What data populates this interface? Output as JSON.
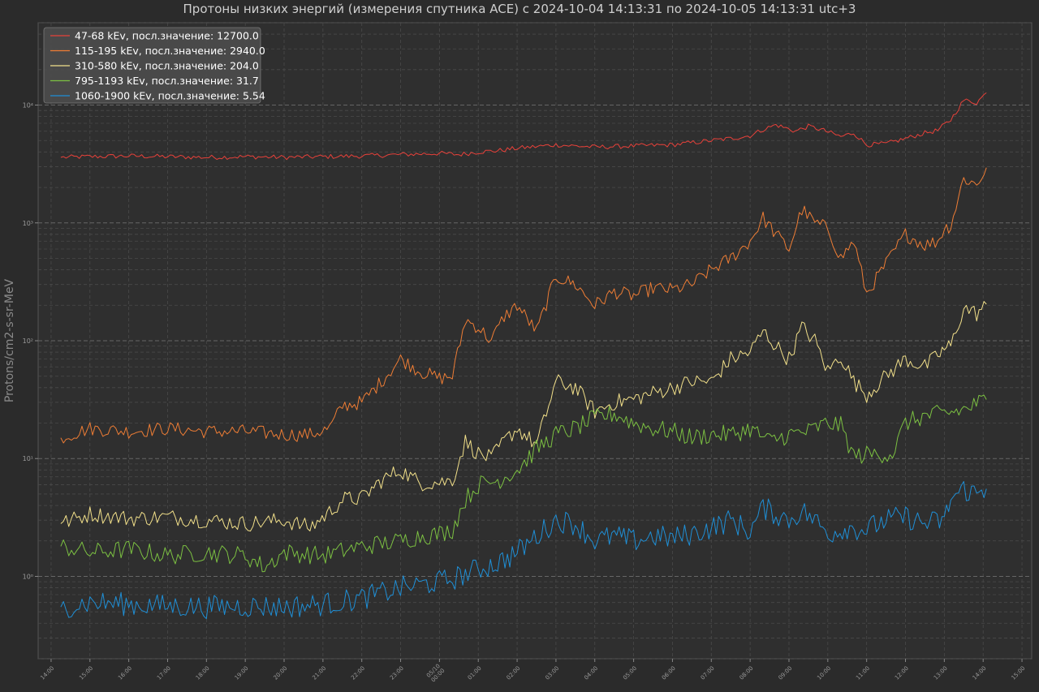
{
  "chart_data": {
    "type": "line",
    "title": "Протоны низких энергий (измерения спутника ACE) с 2024-10-04 14:13:31 по 2024-10-05 14:13:31 utc+3",
    "xlabel": "",
    "ylabel": "Protons/cm2-s-sr-MeV",
    "yscale": "log",
    "ylim": [
      0.2,
      50000
    ],
    "xlim": [
      "2024-10-04 13:40",
      "2024-10-05 15:15"
    ],
    "grid": true,
    "legend_position": "top-left",
    "y_ticks": [
      {
        "value": 1,
        "label": "10⁰"
      },
      {
        "value": 10,
        "label": "10¹"
      },
      {
        "value": 100,
        "label": "10²"
      },
      {
        "value": 1000,
        "label": "10³"
      },
      {
        "value": 10000,
        "label": "10⁴"
      }
    ],
    "x_ticks": [
      {
        "time": "2024-10-04 14:00",
        "label": "14:00"
      },
      {
        "time": "2024-10-04 15:00",
        "label": "15:00"
      },
      {
        "time": "2024-10-04 16:00",
        "label": "16:00"
      },
      {
        "time": "2024-10-04 17:00",
        "label": "17:00"
      },
      {
        "time": "2024-10-04 18:00",
        "label": "18:00"
      },
      {
        "time": "2024-10-04 19:00",
        "label": "19:00"
      },
      {
        "time": "2024-10-04 20:00",
        "label": "20:00"
      },
      {
        "time": "2024-10-04 21:00",
        "label": "21:00"
      },
      {
        "time": "2024-10-04 22:00",
        "label": "22:00"
      },
      {
        "time": "2024-10-04 23:00",
        "label": "23:00"
      },
      {
        "time": "2024-10-05 00:00",
        "label": "05/10\n00:00"
      },
      {
        "time": "2024-10-05 01:00",
        "label": "01:00"
      },
      {
        "time": "2024-10-05 02:00",
        "label": "02:00"
      },
      {
        "time": "2024-10-05 03:00",
        "label": "03:00"
      },
      {
        "time": "2024-10-05 04:00",
        "label": "04:00"
      },
      {
        "time": "2024-10-05 05:00",
        "label": "05:00"
      },
      {
        "time": "2024-10-05 06:00",
        "label": "06:00"
      },
      {
        "time": "2024-10-05 07:00",
        "label": "07:00"
      },
      {
        "time": "2024-10-05 08:00",
        "label": "08:00"
      },
      {
        "time": "2024-10-05 09:00",
        "label": "09:00"
      },
      {
        "time": "2024-10-05 10:00",
        "label": "10:00"
      },
      {
        "time": "2024-10-05 11:00",
        "label": "11:00"
      },
      {
        "time": "2024-10-05 12:00",
        "label": "12:00"
      },
      {
        "time": "2024-10-05 13:00",
        "label": "13:00"
      },
      {
        "time": "2024-10-05 14:00",
        "label": "14:00"
      },
      {
        "time": "2024-10-05 15:00",
        "label": "15:00"
      }
    ],
    "series": [
      {
        "name": "47-68 kEv, посл.значение: 12700.0",
        "color": "#e8413a",
        "x": [
          "2024-10-04 14:15",
          "2024-10-04 15:00",
          "2024-10-04 16:00",
          "2024-10-04 17:00",
          "2024-10-04 18:00",
          "2024-10-04 19:00",
          "2024-10-04 20:00",
          "2024-10-04 21:00",
          "2024-10-04 22:00",
          "2024-10-04 23:00",
          "2024-10-05 00:00",
          "2024-10-05 00:30",
          "2024-10-05 01:00",
          "2024-10-05 01:30",
          "2024-10-05 02:00",
          "2024-10-05 03:00",
          "2024-10-05 04:00",
          "2024-10-05 05:00",
          "2024-10-05 06:00",
          "2024-10-05 07:00",
          "2024-10-05 07:30",
          "2024-10-05 08:00",
          "2024-10-05 08:20",
          "2024-10-05 08:40",
          "2024-10-05 09:10",
          "2024-10-05 09:30",
          "2024-10-05 09:50",
          "2024-10-05 10:20",
          "2024-10-05 10:40",
          "2024-10-05 11:00",
          "2024-10-05 11:30",
          "2024-10-05 12:00",
          "2024-10-05 12:30",
          "2024-10-05 12:50",
          "2024-10-05 13:00",
          "2024-10-05 13:10",
          "2024-10-05 13:30",
          "2024-10-05 13:50",
          "2024-10-05 14:05"
        ],
        "values": [
          3600,
          3650,
          3700,
          3650,
          3600,
          3650,
          3600,
          3650,
          3700,
          3800,
          3900,
          3800,
          4000,
          4100,
          4300,
          4600,
          4400,
          4500,
          4600,
          5000,
          5200,
          5500,
          6200,
          6800,
          6000,
          6600,
          6200,
          5400,
          5800,
          4600,
          4700,
          5200,
          5800,
          6100,
          6800,
          7500,
          11000,
          10500,
          12700
        ]
      },
      {
        "name": "115-195 kEv, посл.значение: 2940.0",
        "color": "#ee7d35",
        "x": [
          "2024-10-04 14:15",
          "2024-10-04 15:00",
          "2024-10-04 16:00",
          "2024-10-04 17:00",
          "2024-10-04 18:00",
          "2024-10-04 19:00",
          "2024-10-04 20:00",
          "2024-10-04 20:40",
          "2024-10-04 21:10",
          "2024-10-04 21:30",
          "2024-10-04 22:00",
          "2024-10-04 22:30",
          "2024-10-04 23:00",
          "2024-10-04 23:30",
          "2024-10-05 00:00",
          "2024-10-05 00:20",
          "2024-10-05 00:40",
          "2024-10-05 01:00",
          "2024-10-05 01:20",
          "2024-10-05 01:40",
          "2024-10-05 02:00",
          "2024-10-05 02:30",
          "2024-10-05 03:00",
          "2024-10-05 03:30",
          "2024-10-05 04:00",
          "2024-10-05 04:30",
          "2024-10-05 05:00",
          "2024-10-05 05:30",
          "2024-10-05 06:00",
          "2024-10-05 06:30",
          "2024-10-05 07:00",
          "2024-10-05 07:30",
          "2024-10-05 08:00",
          "2024-10-05 08:20",
          "2024-10-05 08:40",
          "2024-10-05 09:00",
          "2024-10-05 09:20",
          "2024-10-05 09:40",
          "2024-10-05 10:00",
          "2024-10-05 10:20",
          "2024-10-05 10:40",
          "2024-10-05 11:00",
          "2024-10-05 11:30",
          "2024-10-05 12:00",
          "2024-10-05 12:30",
          "2024-10-05 12:50",
          "2024-10-05 13:00",
          "2024-10-05 13:10",
          "2024-10-05 13:30",
          "2024-10-05 13:50",
          "2024-10-05 14:05"
        ],
        "values": [
          15,
          18,
          17,
          18,
          17,
          17,
          16,
          16,
          18,
          28,
          30,
          45,
          70,
          55,
          48,
          50,
          150,
          130,
          100,
          160,
          200,
          120,
          350,
          300,
          200,
          260,
          240,
          280,
          270,
          300,
          400,
          500,
          700,
          1100,
          800,
          600,
          1300,
          1000,
          900,
          500,
          700,
          250,
          450,
          800,
          650,
          700,
          900,
          950,
          2400,
          2100,
          2940
        ]
      },
      {
        "name": "310-580 kEv, посл.значение: 204.0",
        "color": "#f2e08a",
        "x": [
          "2024-10-04 14:15",
          "2024-10-04 15:00",
          "2024-10-04 16:00",
          "2024-10-04 17:00",
          "2024-10-04 18:00",
          "2024-10-04 19:00",
          "2024-10-04 20:00",
          "2024-10-04 20:40",
          "2024-10-04 21:10",
          "2024-10-04 21:30",
          "2024-10-04 22:00",
          "2024-10-04 22:30",
          "2024-10-04 23:00",
          "2024-10-04 23:30",
          "2024-10-05 00:00",
          "2024-10-05 00:20",
          "2024-10-05 00:40",
          "2024-10-05 01:00",
          "2024-10-05 01:20",
          "2024-10-05 01:40",
          "2024-10-05 02:00",
          "2024-10-05 02:30",
          "2024-10-05 03:00",
          "2024-10-05 03:30",
          "2024-10-05 04:00",
          "2024-10-05 04:30",
          "2024-10-05 05:00",
          "2024-10-05 05:30",
          "2024-10-05 06:00",
          "2024-10-05 06:30",
          "2024-10-05 07:00",
          "2024-10-05 07:30",
          "2024-10-05 08:00",
          "2024-10-05 08:20",
          "2024-10-05 08:40",
          "2024-10-05 09:00",
          "2024-10-05 09:20",
          "2024-10-05 09:40",
          "2024-10-05 10:00",
          "2024-10-05 10:20",
          "2024-10-05 10:40",
          "2024-10-05 11:00",
          "2024-10-05 11:30",
          "2024-10-05 12:00",
          "2024-10-05 12:30",
          "2024-10-05 12:50",
          "2024-10-05 13:00",
          "2024-10-05 13:10",
          "2024-10-05 13:30",
          "2024-10-05 13:50",
          "2024-10-05 14:05"
        ],
        "values": [
          2.8,
          3.4,
          3.1,
          3.2,
          3.0,
          2.8,
          3.0,
          2.6,
          3.5,
          4.5,
          4.6,
          6.5,
          8.0,
          6.2,
          6.3,
          6.5,
          14,
          11,
          10,
          14,
          18,
          13,
          45,
          40,
          25,
          30,
          32,
          36,
          40,
          45,
          45,
          70,
          80,
          120,
          90,
          70,
          130,
          100,
          55,
          75,
          45,
          35,
          50,
          70,
          60,
          75,
          85,
          90,
          190,
          170,
          204
        ]
      },
      {
        "name": "795-1193 kEv, посл.значение: 31.7",
        "color": "#7cc142",
        "x": [
          "2024-10-04 14:15",
          "2024-10-04 15:00",
          "2024-10-04 16:00",
          "2024-10-04 17:00",
          "2024-10-04 18:00",
          "2024-10-04 19:00",
          "2024-10-04 19:30",
          "2024-10-04 20:00",
          "2024-10-04 21:00",
          "2024-10-04 22:00",
          "2024-10-04 23:00",
          "2024-10-04 23:30",
          "2024-10-05 00:00",
          "2024-10-05 00:20",
          "2024-10-05 00:40",
          "2024-10-05 01:00",
          "2024-10-05 01:30",
          "2024-10-05 02:00",
          "2024-10-05 02:30",
          "2024-10-05 03:00",
          "2024-10-05 03:30",
          "2024-10-05 04:00",
          "2024-10-05 04:30",
          "2024-10-05 05:00",
          "2024-10-05 05:30",
          "2024-10-05 06:00",
          "2024-10-05 06:30",
          "2024-10-05 07:00",
          "2024-10-05 07:30",
          "2024-10-05 08:00",
          "2024-10-05 08:30",
          "2024-10-05 09:00",
          "2024-10-05 09:30",
          "2024-10-05 10:00",
          "2024-10-05 10:20",
          "2024-10-05 10:40",
          "2024-10-05 11:00",
          "2024-10-05 11:20",
          "2024-10-05 11:40",
          "2024-10-05 12:00",
          "2024-10-05 12:30",
          "2024-10-05 13:00",
          "2024-10-05 13:30",
          "2024-10-05 14:05"
        ],
        "values": [
          1.8,
          1.6,
          1.7,
          1.5,
          1.6,
          1.5,
          1.2,
          1.6,
          1.5,
          1.8,
          2.0,
          2.2,
          2.3,
          2.5,
          4.5,
          6,
          6.5,
          8,
          12,
          16,
          18,
          22,
          24,
          20,
          18,
          17,
          15,
          16,
          16,
          18,
          14,
          16,
          17,
          20,
          19,
          10.5,
          10.8,
          11,
          11,
          20,
          23,
          24,
          26,
          31.7
        ]
      },
      {
        "name": "1060-1900 kEv, посл.значение: 5.54",
        "color": "#1f8fd6",
        "x": [
          "2024-10-04 14:15",
          "2024-10-04 15:00",
          "2024-10-04 16:00",
          "2024-10-04 17:00",
          "2024-10-04 18:00",
          "2024-10-04 19:00",
          "2024-10-04 20:00",
          "2024-10-04 21:00",
          "2024-10-04 22:00",
          "2024-10-04 23:00",
          "2024-10-05 00:00",
          "2024-10-05 00:20",
          "2024-10-05 00:40",
          "2024-10-05 01:00",
          "2024-10-05 01:30",
          "2024-10-05 02:00",
          "2024-10-05 02:30",
          "2024-10-05 03:00",
          "2024-10-05 03:30",
          "2024-10-05 04:00",
          "2024-10-05 04:30",
          "2024-10-05 05:00",
          "2024-10-05 05:30",
          "2024-10-05 06:00",
          "2024-10-05 06:30",
          "2024-10-05 07:00",
          "2024-10-05 07:30",
          "2024-10-05 08:00",
          "2024-10-05 08:20",
          "2024-10-05 08:40",
          "2024-10-05 09:00",
          "2024-10-05 09:20",
          "2024-10-05 09:40",
          "2024-10-05 10:00",
          "2024-10-05 10:30",
          "2024-10-05 11:00",
          "2024-10-05 11:30",
          "2024-10-05 12:00",
          "2024-10-05 12:30",
          "2024-10-05 13:00",
          "2024-10-05 13:10",
          "2024-10-05 13:30",
          "2024-10-05 13:50",
          "2024-10-05 14:05"
        ],
        "values": [
          0.55,
          0.6,
          0.58,
          0.56,
          0.55,
          0.56,
          0.55,
          0.58,
          0.65,
          0.8,
          0.9,
          0.95,
          1.05,
          1.15,
          1.3,
          1.6,
          2.2,
          3.0,
          2.8,
          2.0,
          2.2,
          2.0,
          2.2,
          2.1,
          2.3,
          2.6,
          3.0,
          2.4,
          3.8,
          3.4,
          3.0,
          3.6,
          3.0,
          2.3,
          2.6,
          2.5,
          3.0,
          3.2,
          2.8,
          3.0,
          4.5,
          5.5,
          5.0,
          5.54
        ]
      }
    ]
  },
  "colors": {
    "background": "#2b2b2b",
    "axes_face": "#2f2f2f",
    "grid_major": "#666666",
    "grid_minor": "#4a4a4a",
    "legend_bg": "#4c4c4c"
  }
}
